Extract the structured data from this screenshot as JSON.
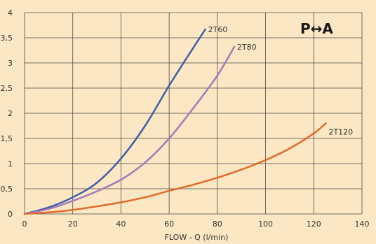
{
  "chart_data": {
    "type": "line",
    "title": "",
    "xlabel": "FLOW - Q (l/min)",
    "ylabel": "",
    "xlim": [
      0,
      140
    ],
    "ylim": [
      0,
      4
    ],
    "x_ticks": [
      "0",
      "20",
      "40",
      "60",
      "80",
      "100",
      "120",
      "140"
    ],
    "y_ticks": [
      "0",
      "0,5",
      "1",
      "1,5",
      "2",
      "2,5",
      "3",
      "3,5",
      "4"
    ],
    "grid": true,
    "annotation": "P↔A",
    "series": [
      {
        "name": "2T60",
        "color": "#3f5fa8",
        "x": [
          0,
          10,
          20,
          30,
          40,
          50,
          60,
          70,
          75
        ],
        "y": [
          0,
          0.13,
          0.33,
          0.62,
          1.1,
          1.75,
          2.55,
          3.3,
          3.67
        ]
      },
      {
        "name": "2T80",
        "color": "#a67ab8",
        "x": [
          0,
          10,
          20,
          30,
          40,
          50,
          60,
          70,
          80,
          87
        ],
        "y": [
          0,
          0.1,
          0.26,
          0.45,
          0.68,
          1.02,
          1.5,
          2.1,
          2.75,
          3.32
        ]
      },
      {
        "name": "2T120",
        "color": "#e06a2a",
        "x": [
          0,
          10,
          20,
          30,
          40,
          50,
          60,
          70,
          80,
          90,
          100,
          110,
          120,
          125
        ],
        "y": [
          0,
          0.03,
          0.08,
          0.15,
          0.23,
          0.33,
          0.46,
          0.58,
          0.72,
          0.88,
          1.07,
          1.3,
          1.6,
          1.8
        ]
      }
    ]
  }
}
